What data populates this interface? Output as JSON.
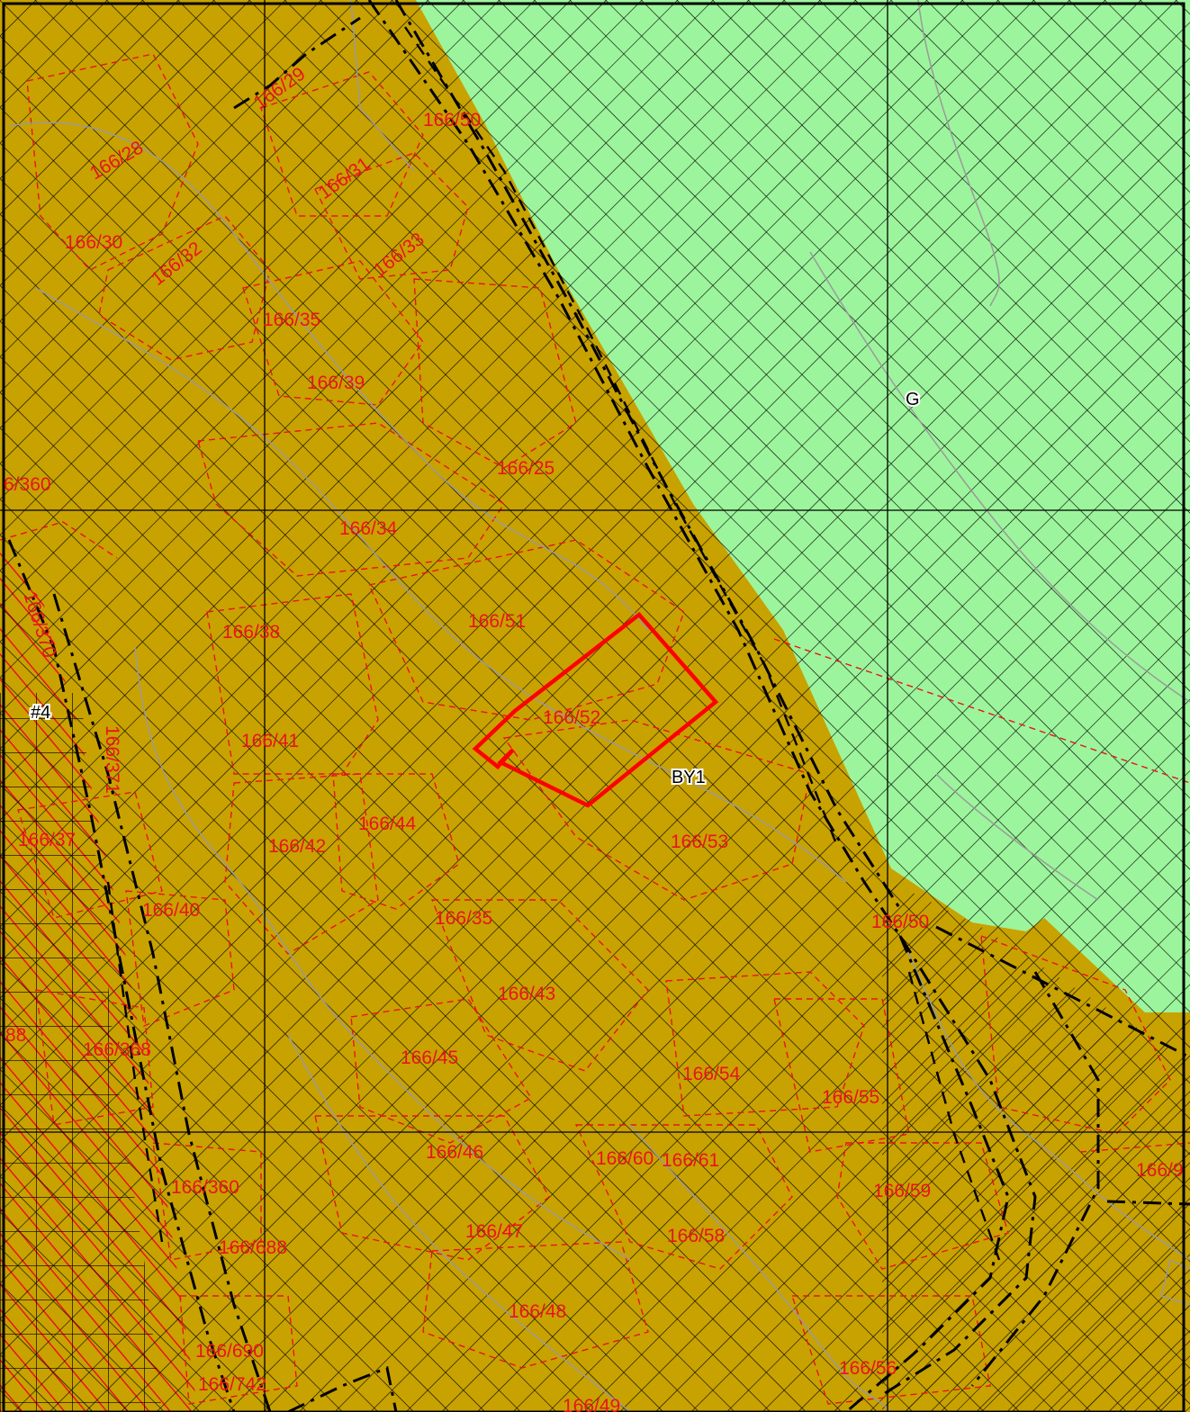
{
  "colors": {
    "building_zone": "#c8a200",
    "green_zone": "#9cf59c",
    "hatch": "#000000",
    "parcel_border": "#e8141c",
    "highlight": "#ff0000",
    "contour": "#9a9a9a"
  },
  "zones": [
    {
      "code": "G",
      "type": "green"
    },
    {
      "code": "BY1",
      "type": "building"
    },
    {
      "code": "#4",
      "type": "marker"
    }
  ],
  "parcels": [
    {
      "label": "166/29",
      "rotate": -35
    },
    {
      "label": "166/50",
      "rotate": 0
    },
    {
      "label": "166/28",
      "rotate": -30
    },
    {
      "label": "166/31",
      "rotate": -35
    },
    {
      "label": "166/30",
      "rotate": 0
    },
    {
      "label": "166/32",
      "rotate": -38
    },
    {
      "label": "166/33",
      "rotate": -38
    },
    {
      "label": "166/35",
      "rotate": 0
    },
    {
      "label": "166/39",
      "rotate": 0
    },
    {
      "label": "166/25",
      "rotate": 0
    },
    {
      "label": "6/360",
      "rotate": 0
    },
    {
      "label": "166/34",
      "rotate": 0
    },
    {
      "label": "166/51",
      "rotate": 0
    },
    {
      "label": "166/38",
      "rotate": 0
    },
    {
      "label": "166/370",
      "rotate": 72
    },
    {
      "label": "166/52",
      "rotate": 0
    },
    {
      "label": "166/41",
      "rotate": 0
    },
    {
      "label": "166/371",
      "rotate": 90
    },
    {
      "label": "166/44",
      "rotate": 0
    },
    {
      "label": "166/53",
      "rotate": 0
    },
    {
      "label": "166/42",
      "rotate": 0
    },
    {
      "label": "166/37",
      "rotate": 0
    },
    {
      "label": "166/40",
      "rotate": 0
    },
    {
      "label": "166/35",
      "rotate": 0
    },
    {
      "label": "166/50",
      "rotate": 0
    },
    {
      "label": "166/43",
      "rotate": 0
    },
    {
      "label": "88",
      "rotate": 0
    },
    {
      "label": "166/368",
      "rotate": 0
    },
    {
      "label": "166/45",
      "rotate": 0
    },
    {
      "label": "166/54",
      "rotate": 0
    },
    {
      "label": "166/55",
      "rotate": 0
    },
    {
      "label": "166/46",
      "rotate": 0
    },
    {
      "label": "166/60",
      "rotate": 0
    },
    {
      "label": "166/61",
      "rotate": 0
    },
    {
      "label": "166/9",
      "rotate": 0
    },
    {
      "label": "166/360",
      "rotate": 0
    },
    {
      "label": "166/59",
      "rotate": 0
    },
    {
      "label": "166/47",
      "rotate": 0
    },
    {
      "label": "166/58",
      "rotate": 0
    },
    {
      "label": "166/688",
      "rotate": 0
    },
    {
      "label": "166/48",
      "rotate": 0
    },
    {
      "label": "166/690",
      "rotate": 0
    },
    {
      "label": "166/56",
      "rotate": 0
    },
    {
      "label": "166/742",
      "rotate": 0
    },
    {
      "label": "166/49",
      "rotate": 0
    }
  ]
}
